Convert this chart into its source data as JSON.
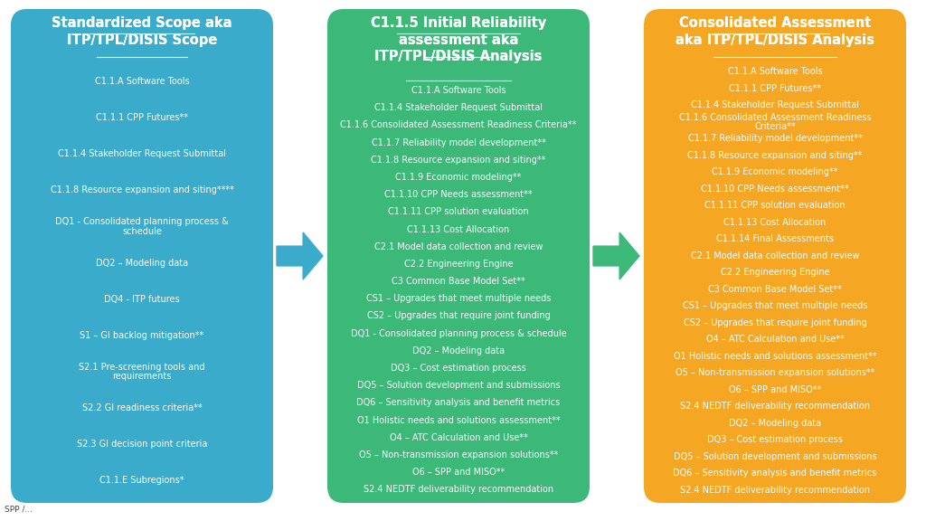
{
  "bg_color": "#ffffff",
  "box1": {
    "color": "#3aabca",
    "title": "Standardized Scope aka\nITP/TPL/DISIS Scope",
    "items": [
      "C1.1.A Software Tools",
      "C1.1.1 CPP Futures**",
      "C1.1.4 Stakeholder Request Submittal",
      "C1.1.8 Resource expansion and siting****",
      "DQ1 - Consolidated planning process &\nschedule",
      "DQ2 – Modeling data",
      "DQ4 - ITP futures",
      "S1 – GI backlog mitigation**",
      "S2.1 Pre-screening tools and\nrequirements",
      "S2.2 GI readiness criteria**",
      "S2.3 GI decision point criteria",
      "C1.1.E Subregions*"
    ]
  },
  "box2": {
    "color": "#3cb878",
    "title": "C1.1.5 Initial Reliability\nassessment aka\nITP/TPL/DISIS Analysis",
    "items": [
      "C1.1.A Software Tools",
      "C1.1.4 Stakeholder Request Submittal",
      "C1.1.6 Consolidated Assessment Readiness Criteria**",
      "C1.1.7 Reliability model development**",
      "C1.1.8 Resource expansion and siting**",
      "C1.1.9 Economic modeling**",
      "C1.1.10 CPP Needs assessment**",
      "C1.1.11 CPP solution evaluation",
      "C1.1.13 Cost Allocation",
      "C2.1 Model data collection and review",
      "C2.2 Engineering Engine",
      "C3 Common Base Model Set**",
      "CS1 – Upgrades that meet multiple needs",
      "CS2 – Upgrades that require joint funding",
      "DQ1 - Consolidated planning process & schedule",
      "DQ2 – Modeling data",
      "DQ3 – Cost estimation process",
      "DQ5 – Solution development and submissions",
      "DQ6 – Sensitivity analysis and benefit metrics",
      "O1 Holistic needs and solutions assessment**",
      "O4 – ATC Calculation and Use**",
      "O5 – Non-transmission expansion solutions**",
      "O6 – SPP and MISO**",
      "S2.4 NEDTF deliverability recommendation"
    ]
  },
  "box3": {
    "color": "#f5a623",
    "title": "Consolidated Assessment\naka ITP/TPL/DISIS Analysis",
    "items": [
      "C1.1.A Software Tools",
      "C1.1.1 CPP Futures**",
      "C1.1.4 Stakeholder Request Submittal",
      "C1.1.6 Consolidated Assessment Readiness\nCriteria**",
      "C1.1.7 Reliability model development**",
      "C1.1.8 Resource expansion and siting**",
      "C1.1.9 Economic modeling**",
      "C1.1.10 CPP Needs assessment**",
      "C1.1.11 CPP solution evaluation",
      "C1.1.13 Cost Allocation",
      "C1.1.14 Final Assessments",
      "C2.1 Model data collection and review",
      "C2.2 Engineering Engine",
      "C3 Common Base Model Set**",
      "CS1 – Upgrades that meet multiple needs",
      "CS2 – Upgrades that require joint funding",
      "O4 – ATC Calculation and Use**",
      "O1 Holistic needs and solutions assessment**",
      "O5 – Non-transmission expansion solutions**",
      "O6 – SPP and MISO**",
      "S2.4 NEDTF deliverability recommendation",
      "DQ2 – Modeling data",
      "DQ3 – Cost estimation process",
      "DQ5 – Solution development and submissions",
      "DQ6 – Sensitivity analysis and benefit metrics",
      "S2.4 NEDTF deliverability recommendation"
    ]
  },
  "arrow1_color": "#3aabca",
  "arrow2_color": "#3cb878",
  "footer_text": "SPP /..."
}
